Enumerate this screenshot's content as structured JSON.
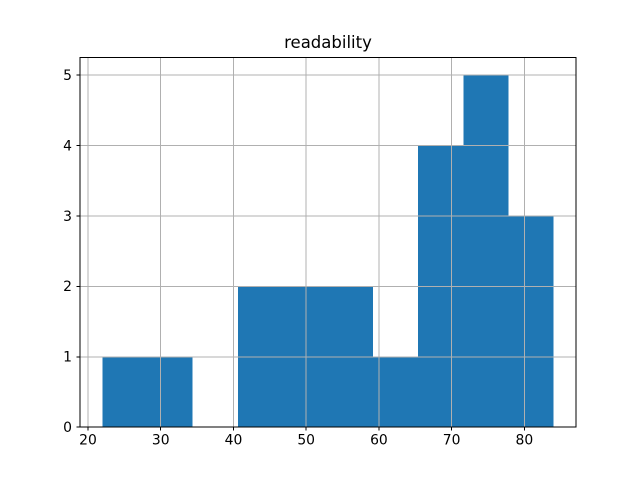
{
  "figure": {
    "background": "#ffffff"
  },
  "chart_data": {
    "type": "bar",
    "subtype": "histogram",
    "title": "readability",
    "xlabel": "",
    "ylabel": "",
    "bin_edges": [
      22.0,
      28.2,
      34.4,
      40.6,
      46.8,
      53.0,
      59.2,
      65.4,
      71.6,
      77.8,
      84.0
    ],
    "counts": [
      1,
      1,
      0,
      2,
      2,
      2,
      1,
      4,
      5,
      3
    ],
    "xlim": [
      18.9,
      87.1
    ],
    "ylim": [
      0,
      5.25
    ],
    "xticks": [
      20,
      30,
      40,
      50,
      60,
      70,
      80
    ],
    "yticks": [
      0,
      1,
      2,
      3,
      4,
      5
    ],
    "grid": true,
    "legend": null,
    "bar_color": "#1f77b4",
    "grid_color": "#b0b0b0",
    "spine_color": "#000000",
    "text_color": "#000000"
  }
}
